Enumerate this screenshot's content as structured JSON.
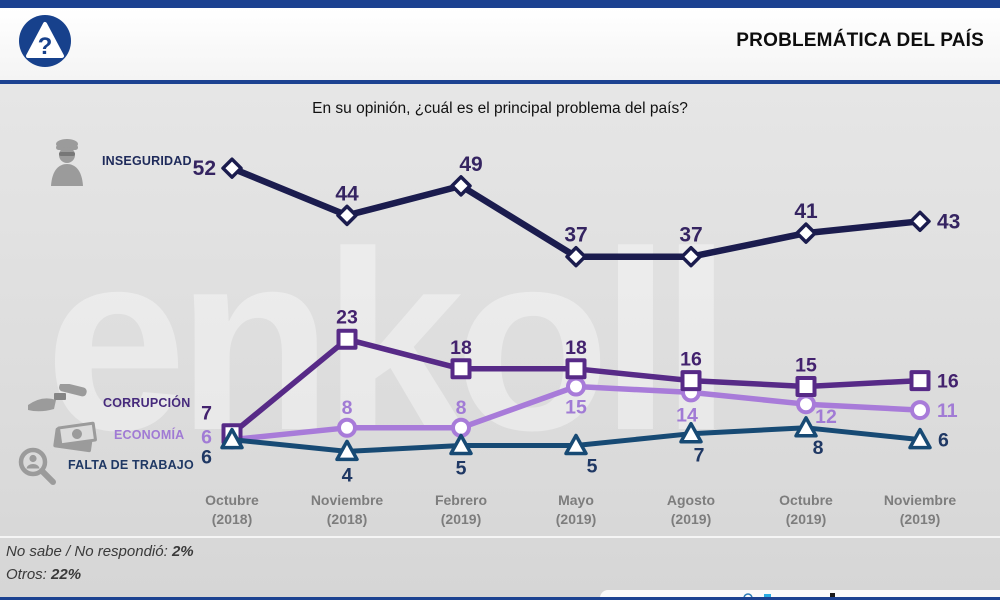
{
  "header": {
    "title": "PROBLEMÁTICA DEL PAÍS"
  },
  "watermark": "enkoll",
  "chart_data": {
    "type": "line",
    "title": "En su opinión, ¿cuál es el principal problema del país?",
    "categories": [
      "Octubre (2018)",
      "Noviembre (2018)",
      "Febrero (2019)",
      "Mayo (2019)",
      "Agosto (2019)",
      "Octubre (2019)",
      "Noviembre (2019)"
    ],
    "series": [
      {
        "name": "INSEGURIDAD",
        "icon": "thief-icon",
        "marker": "diamond",
        "color": "#1b1c4e",
        "label_color": "#352461",
        "name_color": "#1e2a5a",
        "values": [
          52,
          44,
          49,
          37,
          37,
          41,
          43
        ]
      },
      {
        "name": "CORRUPCIÓN",
        "icon": "bribe-hand-icon",
        "marker": "square",
        "color": "#572a87",
        "label_color": "#43226e",
        "name_color": "#462a7c",
        "values": [
          7,
          23,
          18,
          18,
          16,
          15,
          16
        ]
      },
      {
        "name": "ECONOMÍA",
        "icon": "money-icon",
        "marker": "circle",
        "color": "#a87bd9",
        "label_color": "#a17bd5",
        "name_color": "#a07ad4",
        "values": [
          6,
          8,
          8,
          15,
          14,
          12,
          11
        ]
      },
      {
        "name": "FALTA DE TRABAJO",
        "icon": "job-search-icon",
        "marker": "triangle",
        "color": "#174a74",
        "label_color": "#1f3864",
        "name_color": "#1f3864",
        "values": [
          6,
          4,
          5,
          5,
          7,
          8,
          6
        ]
      }
    ],
    "ylim": [
      0,
      60
    ],
    "grid": false,
    "legend_position": "left",
    "marker_fill": "#ffffff"
  },
  "footnotes": [
    {
      "label": "No sabe / No respondió:",
      "value": "2%"
    },
    {
      "label": "Otros:",
      "value": "22%"
    }
  ]
}
